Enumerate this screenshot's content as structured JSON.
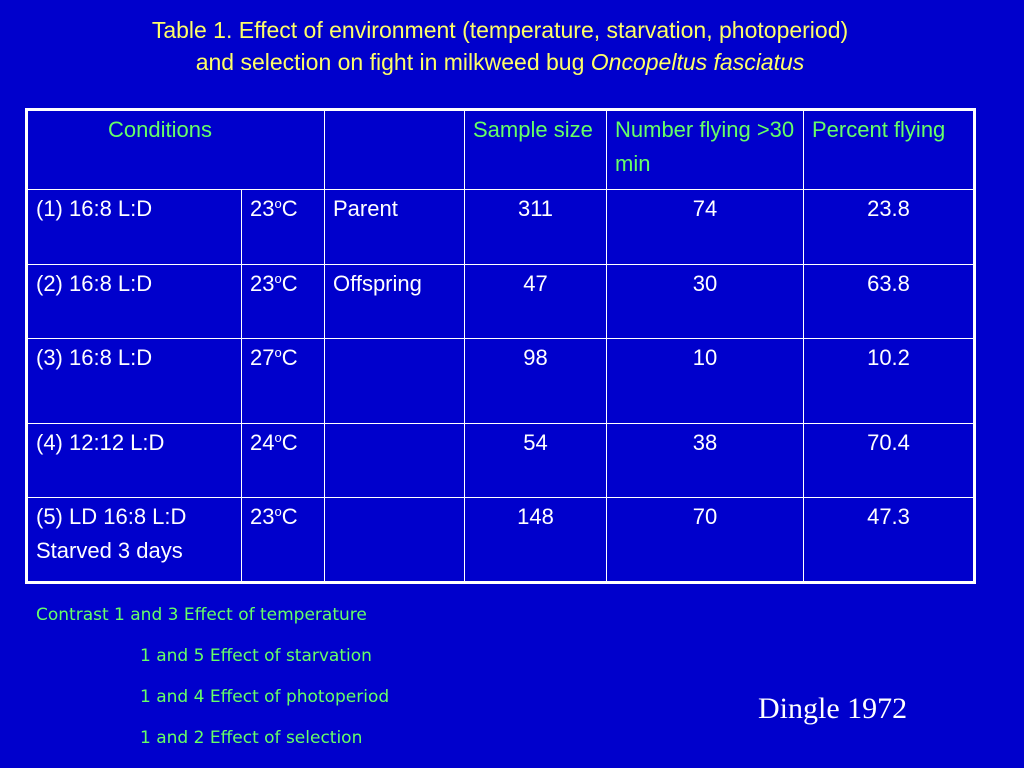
{
  "title": {
    "line1": "Table 1. Effect of environment (temperature, starvation, photoperiod)",
    "line2_prefix": "and selection on fight in milkweed bug ",
    "line2_species": "Oncopeltus fasciatus"
  },
  "table": {
    "headers": {
      "conditions": "Conditions",
      "blank": "",
      "sample_size": "Sample size",
      "number_flying": "Number flying >30 min",
      "percent_flying": "Percent flying"
    },
    "rows": [
      {
        "condition": "(1) 16:8 L:D",
        "condition_line2": "",
        "temp": "23",
        "temp_unit": "C",
        "degree": "o",
        "group": "Parent",
        "sample": "311",
        "flying": "74",
        "percent": "23.8"
      },
      {
        "condition": "(2) 16:8 L:D",
        "condition_line2": "",
        "temp": "23",
        "temp_unit": "C",
        "degree": "o",
        "group": "Offspring",
        "sample": "47",
        "flying": "30",
        "percent": "63.8"
      },
      {
        "condition": "(3) 16:8 L:D",
        "condition_line2": "",
        "temp": "27",
        "temp_unit": "C",
        "degree": "o",
        "group": "",
        "sample": "98",
        "flying": "10",
        "percent": "10.2"
      },
      {
        "condition": "(4) 12:12 L:D",
        "condition_line2": "",
        "temp": "24",
        "temp_unit": "C",
        "degree": "o",
        "group": "",
        "sample": "54",
        "flying": "38",
        "percent": "70.4"
      },
      {
        "condition": "(5) LD 16:8 L:D",
        "condition_line2": "Starved 3 days",
        "temp": "23",
        "temp_unit": "C",
        "degree": "o",
        "group": "",
        "sample": "148",
        "flying": "70",
        "percent": "47.3"
      }
    ]
  },
  "contrasts": [
    "Contrast 1 and 3 Effect of temperature",
    "1 and 5 Effect of starvation",
    "1 and 4 Effect of photoperiod",
    "1 and 2 Effect of selection"
  ],
  "credit": "Dingle 1972",
  "colors": {
    "background": "#0000cc",
    "title": "#ffff66",
    "header_text": "#66ff66",
    "cell_text": "#ffffff",
    "contrast_text": "#66ff66"
  }
}
